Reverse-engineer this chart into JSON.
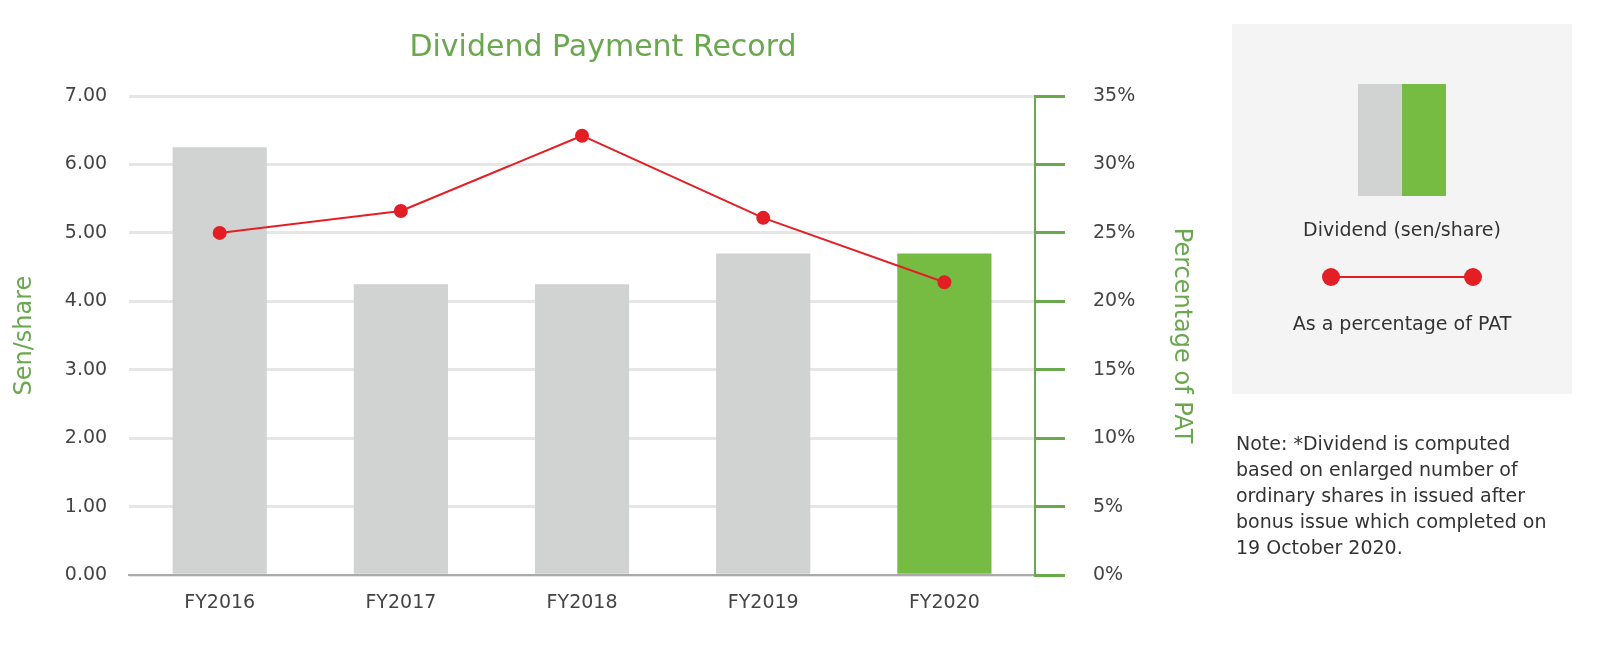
{
  "chart_data": {
    "type": "bar",
    "title": "Dividend Payment Record",
    "ylabel": "Sen/share",
    "y2label": "Percentage of PAT",
    "categories": [
      "FY2016",
      "FY2017",
      "FY2018",
      "FY2019",
      "FY2020"
    ],
    "series": [
      {
        "name": "Dividend (sen/share)",
        "colors": [
          "#d1d3d2",
          "#d1d3d2",
          "#d1d3d2",
          "#d1d3d2",
          "#76bc43"
        ],
        "values": [
          6.25,
          4.25,
          4.25,
          4.7,
          4.7
        ]
      },
      {
        "name": "As a percentage of PAT",
        "type": "line",
        "axis": "y2",
        "color": "#e31e24",
        "marker": "circle",
        "values": [
          25,
          26.6,
          32.1,
          26.1,
          21.4
        ]
      }
    ],
    "ylim": [
      0,
      7
    ],
    "yticks": [
      {
        "value": 0,
        "label": "0.00"
      },
      {
        "value": 1,
        "label": "1.00"
      },
      {
        "value": 2,
        "label": "2.00"
      },
      {
        "value": 3,
        "label": "3.00"
      },
      {
        "value": 4,
        "label": "4.00"
      },
      {
        "value": 5,
        "label": "5.00"
      },
      {
        "value": 6,
        "label": "6.00"
      },
      {
        "value": 7,
        "label": "7.00"
      }
    ],
    "y2lim": [
      0,
      35
    ],
    "y2ticks": [
      {
        "value": 0,
        "label": "0%"
      },
      {
        "value": 5,
        "label": "5%"
      },
      {
        "value": 10,
        "label": "10%"
      },
      {
        "value": 15,
        "label": "15%"
      },
      {
        "value": 20,
        "label": "20%"
      },
      {
        "value": 25,
        "label": "25%"
      },
      {
        "value": 30,
        "label": "30%"
      },
      {
        "value": 35,
        "label": "35%"
      }
    ],
    "grid": "y",
    "legend": "right",
    "annotations": [
      "Note: *Dividend is computed based on enlarged number of ordinary shares in issued after bonus issue which completed on 19 October 2020."
    ]
  }
}
